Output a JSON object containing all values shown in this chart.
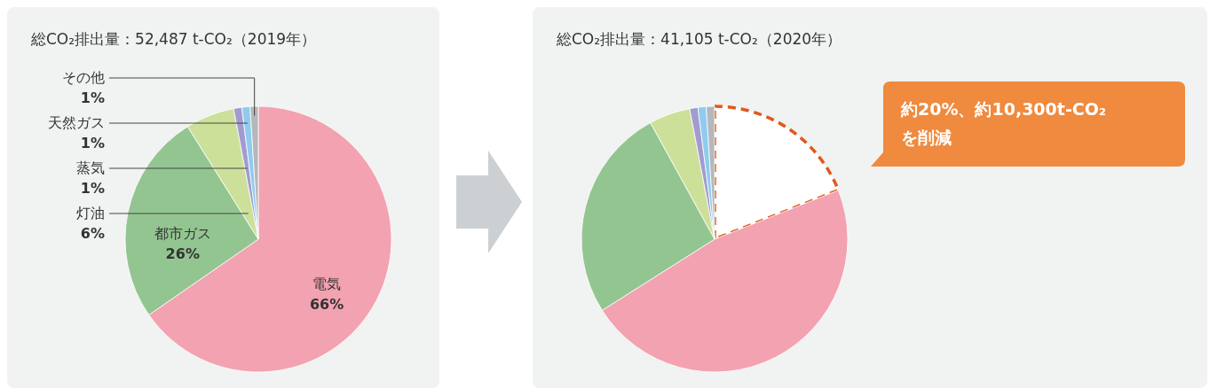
{
  "chart_data": [
    {
      "type": "pie",
      "title": "総CO₂排出量：52,487 t-CO₂（2019年）",
      "categories": [
        "電気",
        "都市ガス",
        "灯油",
        "蒸気",
        "天然ガス",
        "その他"
      ],
      "values": [
        66,
        26,
        6,
        1,
        1,
        1
      ],
      "value_labels": [
        "66%",
        "26%",
        "6%",
        "1%",
        "1%",
        "1%"
      ],
      "colors": [
        "#f2a2b0",
        "#93c591",
        "#cde09a",
        "#a29bd0",
        "#8fcbef",
        "#b4b8bb"
      ]
    },
    {
      "type": "pie",
      "title": "総CO₂排出量：41,105 t-CO₂（2020年）",
      "categories": [
        null,
        null,
        null,
        null,
        null,
        null,
        null
      ],
      "values": [
        19,
        47,
        26,
        5,
        1,
        1,
        1
      ],
      "colors": [
        null,
        "#f2a2b0",
        "#93c591",
        "#cde09a",
        "#a29bd0",
        "#8fcbef",
        "#b4b8bb"
      ],
      "annotations": [
        "約20%、約10,300t-CO₂\nを削減"
      ]
    }
  ]
}
